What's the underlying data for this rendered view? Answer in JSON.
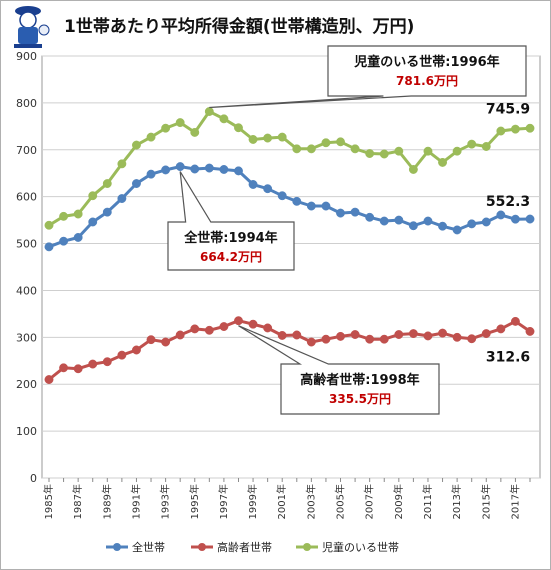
{
  "title": "1世帯あたり平均所得金額(世帯構造別、万円)",
  "chart_data": {
    "type": "line",
    "title": "1世帯あたり平均所得金額(世帯構造別、万円)",
    "ylim": [
      0,
      900
    ],
    "yticks": [
      0,
      100,
      200,
      300,
      400,
      500,
      600,
      700,
      800,
      900
    ],
    "grid": true,
    "legend_position": "bottom",
    "x": [
      1985,
      1986,
      1987,
      1988,
      1989,
      1990,
      1991,
      1992,
      1993,
      1994,
      1995,
      1996,
      1997,
      1998,
      1999,
      2000,
      2001,
      2002,
      2003,
      2004,
      2005,
      2006,
      2007,
      2008,
      2009,
      2010,
      2011,
      2012,
      2013,
      2014,
      2015,
      2016,
      2017,
      2018
    ],
    "x_tick_labels": [
      "1985年",
      "1987年",
      "1989年",
      "1991年",
      "1993年",
      "1995年",
      "1997年",
      "1999年",
      "2001年",
      "2003年",
      "2005年",
      "2007年",
      "2009年",
      "2011年",
      "2013年",
      "2015年",
      "2017年"
    ],
    "x_tick_years": [
      1985,
      1987,
      1989,
      1991,
      1993,
      1995,
      1997,
      1999,
      2001,
      2003,
      2005,
      2007,
      2009,
      2011,
      2013,
      2015,
      2017
    ],
    "series": [
      {
        "name": "全世帯",
        "color": "#4f81bd",
        "values": [
          493,
          505,
          513,
          546,
          567,
          596,
          628,
          648,
          657,
          664.2,
          659,
          661,
          658,
          655,
          626,
          617,
          602,
          590,
          580,
          580,
          565,
          567,
          556,
          548,
          550,
          538,
          548,
          537,
          529,
          542,
          546,
          561,
          552,
          552.3
        ]
      },
      {
        "name": "高齢者世帯",
        "color": "#c0504d",
        "values": [
          210,
          235,
          233,
          243,
          248,
          262,
          273,
          295,
          290,
          305,
          318,
          315,
          323,
          335.5,
          328,
          320,
          304,
          305,
          290,
          296,
          302,
          306,
          296,
          296,
          306,
          308,
          303,
          309,
          300,
          297,
          308,
          318,
          334,
          312.6
        ]
      },
      {
        "name": "児童のいる世帯",
        "color": "#9bbb59",
        "values": [
          539,
          558,
          563,
          602,
          628,
          670,
          710,
          727,
          746,
          758,
          737,
          781.6,
          766,
          747,
          722,
          725,
          727,
          702,
          702,
          715,
          717,
          702,
          692,
          691,
          697,
          658,
          697,
          673,
          697,
          712,
          707,
          740,
          744,
          745.9
        ]
      }
    ],
    "end_labels": [
      "552.3",
      "312.6",
      "745.9"
    ],
    "annotations": [
      {
        "series": 2,
        "year": 1996,
        "title": "児童のいる世帯:1996年",
        "value": "781.6万円"
      },
      {
        "series": 0,
        "year": 1994,
        "title": "全世帯:1994年",
        "value": "664.2万円"
      },
      {
        "series": 1,
        "year": 1998,
        "title": "高齢者世帯:1998年",
        "value": "335.5万円"
      }
    ]
  }
}
